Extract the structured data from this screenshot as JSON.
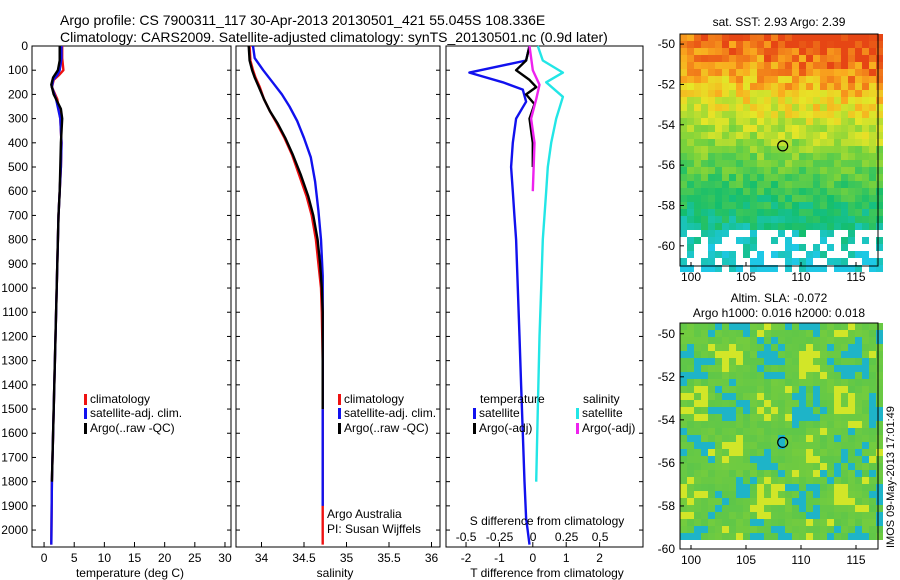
{
  "header": {
    "line1": "Argo profile: CS 7900311_117 30-Apr-2013 20130501_421 55.045S 108.336E",
    "line2": "Climatology: CARS2009. Satellite-adjusted climatology: synTS_20130501.nc (0.9d later)"
  },
  "colors": {
    "climatology": "#ee1111",
    "satellite_clim": "#1111ee",
    "argo": "#000000",
    "sat_salinity": "#22e6e6",
    "argo_adj_salinity": "#ee22ee"
  },
  "chart_data": [
    {
      "type": "line",
      "panel": "temperature",
      "xlabel": "temperature (deg C)",
      "ylabel": "",
      "xlim": [
        -2,
        31
      ],
      "ylim": [
        2070,
        0
      ],
      "xticks": [
        "0",
        "5",
        "10",
        "15",
        "20",
        "25",
        "30"
      ],
      "yticks": [
        "0",
        "100",
        "200",
        "300",
        "400",
        "500",
        "600",
        "700",
        "800",
        "900",
        "1000",
        "1100",
        "1200",
        "1300",
        "1400",
        "1500",
        "1600",
        "1700",
        "1800",
        "1900",
        "2000"
      ],
      "legend": [
        "climatology",
        "satellite-adj. clim.",
        "Argo(..raw -QC)"
      ],
      "series": [
        {
          "name": "climatology",
          "x": [
            3.0,
            3.0,
            3.2,
            2.5,
            1.6,
            1.3,
            2.2,
            2.7,
            2.9,
            2.8,
            2.6,
            2.4,
            2.3,
            2.2,
            2.1,
            1.9,
            1.7,
            1.5,
            1.3,
            1.2
          ],
          "y": [
            0,
            50,
            100,
            120,
            140,
            170,
            220,
            300,
            400,
            500,
            600,
            700,
            800,
            900,
            1000,
            1200,
            1400,
            1600,
            1800,
            2060
          ]
        },
        {
          "name": "satellite-adj. clim.",
          "x": [
            2.9,
            2.9,
            2.6,
            2.2,
            1.5,
            1.3,
            2.0,
            2.7,
            2.9,
            2.8,
            2.6,
            2.4,
            2.3,
            2.2,
            2.1,
            1.9,
            1.7,
            1.5,
            1.3,
            1.2
          ],
          "y": [
            0,
            50,
            100,
            120,
            140,
            170,
            220,
            300,
            400,
            500,
            600,
            700,
            800,
            900,
            1000,
            1200,
            1400,
            1600,
            1800,
            2060
          ]
        },
        {
          "name": "Argo(..raw -QC)",
          "x": [
            2.6,
            2.6,
            2.3,
            1.5,
            1.2,
            1.6,
            2.8,
            3.0,
            2.8,
            2.6,
            2.4,
            2.3,
            2.2,
            2.1,
            1.9,
            1.7,
            1.5,
            1.3
          ],
          "y": [
            0,
            60,
            100,
            130,
            160,
            200,
            260,
            300,
            400,
            600,
            700,
            800,
            900,
            1000,
            1200,
            1400,
            1600,
            1800
          ]
        }
      ]
    },
    {
      "type": "line",
      "panel": "salinity",
      "xlabel": "salinity",
      "ylabel": "",
      "xlim": [
        33.7,
        36.1
      ],
      "ylim": [
        2070,
        0
      ],
      "xticks": [
        "34",
        "34.5",
        "35",
        "35.5",
        "36"
      ],
      "legend": [
        "climatology",
        "satellite-adj. clim.",
        "Argo(..raw -QC)"
      ],
      "annotation": [
        "Argo Australia",
        "PI: Susan Wijffels"
      ],
      "series": [
        {
          "name": "climatology",
          "x": [
            33.86,
            33.87,
            33.9,
            33.93,
            33.98,
            34.03,
            34.1,
            34.18,
            34.27,
            34.36,
            34.44,
            34.53,
            34.59,
            34.64,
            34.67,
            34.7,
            34.71,
            34.72,
            34.72,
            34.72,
            34.72
          ],
          "y": [
            0,
            60,
            100,
            130,
            170,
            220,
            270,
            320,
            380,
            450,
            530,
            620,
            700,
            800,
            900,
            1000,
            1100,
            1300,
            1500,
            1800,
            2060
          ]
        },
        {
          "name": "satellite-adj. clim.",
          "x": [
            33.9,
            33.92,
            34.02,
            34.13,
            34.24,
            34.33,
            34.42,
            34.5,
            34.58,
            34.63,
            34.67,
            34.7,
            34.72,
            34.72,
            34.72,
            34.72
          ],
          "y": [
            0,
            50,
            100,
            150,
            200,
            250,
            310,
            380,
            460,
            560,
            680,
            800,
            950,
            1200,
            1500,
            1900
          ]
        },
        {
          "name": "Argo(..raw -QC)",
          "x": [
            33.85,
            33.86,
            33.89,
            33.92,
            33.97,
            34.03,
            34.1,
            34.19,
            34.28,
            34.37,
            34.46,
            34.55,
            34.61,
            34.66,
            34.69,
            34.71,
            34.72,
            34.72,
            34.72
          ],
          "y": [
            0,
            60,
            100,
            130,
            170,
            220,
            270,
            320,
            380,
            450,
            530,
            620,
            700,
            800,
            900,
            1000,
            1100,
            1300,
            1500
          ]
        }
      ]
    },
    {
      "type": "line",
      "panel": "differences",
      "xlabel": "T difference from climatology",
      "xlabel_top": "S difference from climatology",
      "xlim": [
        -2.6,
        3.3
      ],
      "ylim": [
        2070,
        0
      ],
      "xticks": [
        "-2",
        "-1",
        "0",
        "1",
        "2"
      ],
      "xticks_top": [
        "-0.5",
        "-0.25",
        "0",
        "0.25",
        "0.5"
      ],
      "legend_headers": [
        "temperature",
        "salinity"
      ],
      "legend": [
        "satellite",
        "Argo(-adj)",
        "satellite",
        "Argo(-adj)"
      ],
      "series": [
        {
          "name": "satellite",
          "group": "temperature",
          "x": [
            -0.1,
            -0.2,
            -1.9,
            -0.9,
            -0.3,
            -0.2,
            -0.5,
            -0.6,
            -0.65,
            -0.6,
            -0.55,
            -0.5,
            -0.45,
            -0.4,
            -0.35,
            -0.3,
            -0.25,
            -0.2,
            -0.1
          ],
          "y": [
            0,
            60,
            110,
            150,
            180,
            230,
            300,
            400,
            500,
            600,
            700,
            800,
            1000,
            1200,
            1400,
            1600,
            1800,
            1950,
            2060
          ]
        },
        {
          "name": "Argo(-adj)",
          "group": "temperature",
          "x": [
            -0.1,
            -0.2,
            -0.5,
            -0.1,
            0.1,
            -0.2,
            0.05,
            -0.1,
            0.0,
            0.0
          ],
          "y": [
            0,
            60,
            100,
            140,
            170,
            200,
            240,
            300,
            400,
            500
          ]
        },
        {
          "name": "satellite",
          "group": "salinity",
          "x": [
            0.15,
            0.3,
            0.9,
            0.4,
            0.9,
            0.7,
            0.55,
            0.45,
            0.4,
            0.35,
            0.3,
            0.25,
            0.2,
            0.15,
            0.1
          ],
          "y": [
            0,
            60,
            110,
            150,
            210,
            300,
            400,
            500,
            600,
            700,
            800,
            1000,
            1200,
            1500,
            1800
          ]
        },
        {
          "name": "Argo(-adj)",
          "group": "salinity",
          "x": [
            -0.1,
            0.0,
            0.2,
            0.1,
            -0.05,
            0.05,
            0.0
          ],
          "y": [
            0,
            100,
            160,
            220,
            300,
            400,
            600
          ]
        }
      ]
    },
    {
      "type": "heatmap",
      "panel": "sst-map",
      "title": "sat. SST: 2.93 Argo: 2.39",
      "xlim": [
        99,
        117
      ],
      "ylim": [
        -61,
        -49.5
      ],
      "xticks": [
        "100",
        "105",
        "110",
        "115"
      ],
      "yticks": [
        "-50",
        "-52",
        "-54",
        "-56",
        "-58",
        "-60"
      ],
      "marker": {
        "lon": 108.336,
        "lat": -55.045
      }
    },
    {
      "type": "heatmap",
      "panel": "sla-map",
      "title": [
        "Altim. SLA: -0.072",
        "Argo h1000: 0.016 h2000: 0.018"
      ],
      "xlim": [
        99,
        117
      ],
      "ylim": [
        -60,
        -49.5
      ],
      "xticks": [
        "100",
        "105",
        "110",
        "115"
      ],
      "yticks": [
        "-50",
        "-52",
        "-54",
        "-56",
        "-58",
        "-60"
      ],
      "marker": {
        "lon": 108.336,
        "lat": -55.045
      },
      "side_label": "IMOS 09-May-2013 17:01:49"
    }
  ]
}
